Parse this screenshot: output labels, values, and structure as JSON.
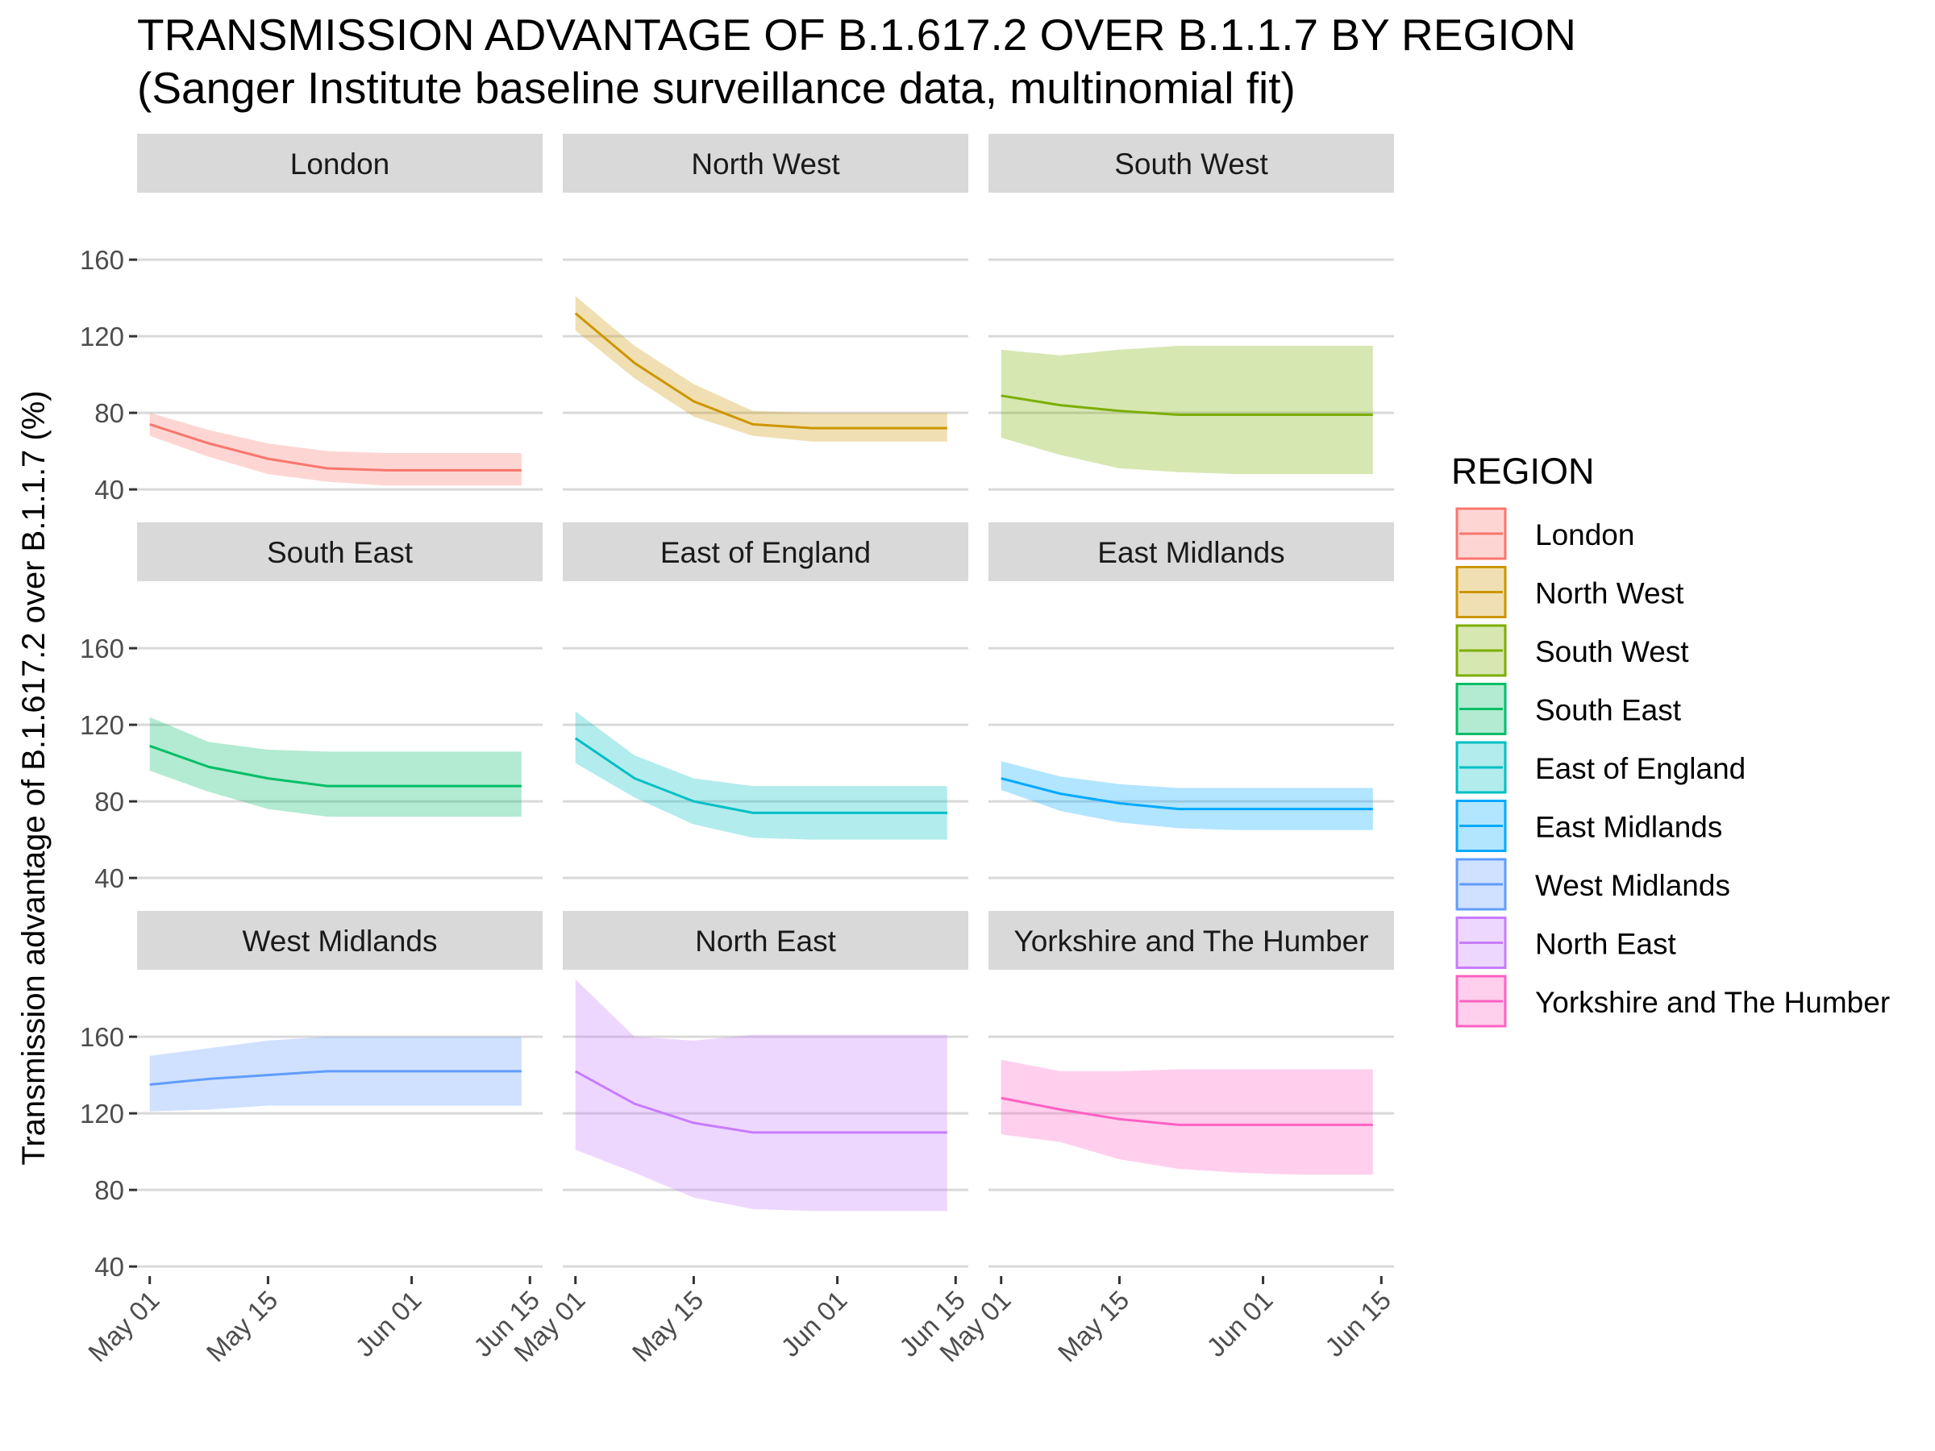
{
  "chart_data": {
    "type": "area",
    "title": "TRANSMISSION ADVANTAGE OF B.1.617.2 OVER B.1.1.7 BY REGION",
    "subtitle": "(Sanger Institute baseline surveillance data, multinomial fit)",
    "ylabel": "Transmission advantage of B.1.617.2 over B.1.1.7 (%)",
    "xlabel": "",
    "x": [
      "2021-05-01",
      "2021-05-08",
      "2021-05-15",
      "2021-05-22",
      "2021-05-29",
      "2021-06-05",
      "2021-06-14"
    ],
    "x_tick_labels": [
      "May 01",
      "May 15",
      "Jun 01",
      "Jun 15"
    ],
    "x_ticks": [
      "2021-05-01",
      "2021-05-15",
      "2021-06-01",
      "2021-06-15"
    ],
    "y_ticks": [
      40,
      80,
      120,
      160
    ],
    "ylim": [
      35,
      195
    ],
    "grid": true,
    "legend_title": "REGION",
    "legend_position": "right",
    "series": [
      {
        "name": "London",
        "color": "#F8766D",
        "values": [
          74,
          64,
          56,
          51,
          50,
          50,
          50
        ],
        "lower": [
          68,
          57,
          48,
          44,
          42,
          42,
          42
        ],
        "upper": [
          80,
          71,
          64,
          60,
          59,
          59,
          59
        ]
      },
      {
        "name": "North West",
        "color": "#CD9600",
        "values": [
          132,
          106,
          86,
          74,
          72,
          72,
          72
        ],
        "lower": [
          123,
          98,
          78,
          68,
          65,
          65,
          65
        ],
        "upper": [
          141,
          115,
          95,
          81,
          80,
          80,
          80
        ]
      },
      {
        "name": "South West",
        "color": "#7CAE00",
        "values": [
          89,
          84,
          81,
          79,
          79,
          79,
          79
        ],
        "lower": [
          67,
          58,
          51,
          49,
          48,
          48,
          48
        ],
        "upper": [
          113,
          110,
          113,
          115,
          115,
          115,
          115
        ]
      },
      {
        "name": "South East",
        "color": "#00BE67",
        "values": [
          109,
          98,
          92,
          88,
          88,
          88,
          88
        ],
        "lower": [
          96,
          85,
          76,
          72,
          72,
          72,
          72
        ],
        "upper": [
          124,
          111,
          107,
          106,
          106,
          106,
          106
        ]
      },
      {
        "name": "East of England",
        "color": "#00BFC4",
        "values": [
          113,
          92,
          80,
          74,
          74,
          74,
          74
        ],
        "lower": [
          100,
          82,
          68,
          61,
          60,
          60,
          60
        ],
        "upper": [
          127,
          104,
          92,
          88,
          88,
          88,
          88
        ]
      },
      {
        "name": "East Midlands",
        "color": "#00A9FF",
        "values": [
          92,
          84,
          79,
          76,
          76,
          76,
          76
        ],
        "lower": [
          86,
          75,
          69,
          66,
          65,
          65,
          65
        ],
        "upper": [
          101,
          93,
          89,
          87,
          87,
          87,
          87
        ]
      },
      {
        "name": "West Midlands",
        "color": "#619CFF",
        "values": [
          135,
          138,
          140,
          142,
          142,
          142,
          142
        ],
        "lower": [
          121,
          122,
          124,
          124,
          124,
          124,
          124
        ],
        "upper": [
          150,
          154,
          158,
          160,
          160,
          160,
          160
        ]
      },
      {
        "name": "North East",
        "color": "#C77CFF",
        "values": [
          142,
          125,
          115,
          110,
          110,
          110,
          110
        ],
        "lower": [
          101,
          89,
          76,
          70,
          69,
          69,
          69
        ],
        "upper": [
          190,
          160,
          158,
          161,
          161,
          161,
          161
        ]
      },
      {
        "name": "Yorkshire and The Humber",
        "color": "#FF61C3",
        "values": [
          128,
          122,
          117,
          114,
          114,
          114,
          114
        ],
        "lower": [
          109,
          105,
          96,
          91,
          89,
          88,
          88
        ],
        "upper": [
          148,
          142,
          142,
          143,
          143,
          143,
          143
        ]
      }
    ]
  }
}
